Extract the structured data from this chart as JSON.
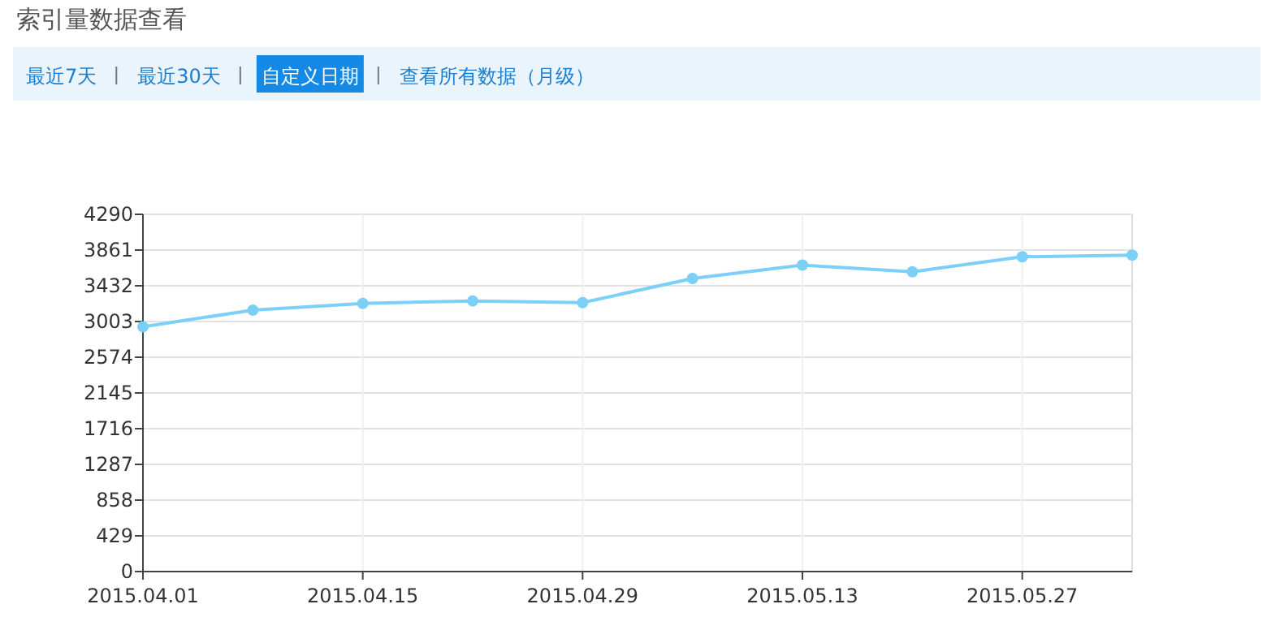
{
  "chart_data": {
    "type": "line",
    "title": "索引量数据查看",
    "annotations": [
      "最近7天",
      "最近30天",
      "自定义日期",
      "查看所有数据（月级）"
    ],
    "x": [
      "2015-04-01",
      "2015-04-08",
      "2015-04-15",
      "2015-04-22",
      "2015-04-29",
      "2015-05-06",
      "2015-05-13",
      "2015-05-20",
      "2015-05-27",
      "2015-06-03"
    ],
    "series": [
      {
        "color": "#7ccff6",
        "values": [
          2940,
          3140,
          3220,
          3250,
          3230,
          3520,
          3680,
          3600,
          3780,
          3800
        ]
      }
    ],
    "xlim": [
      "2015-04-01",
      "2015-06-03"
    ],
    "xticks": [
      {
        "value": "2015-04-01",
        "label": "2015.04.01"
      },
      {
        "value": "2015-04-15",
        "label": "2015.04.15"
      },
      {
        "value": "2015-04-29",
        "label": "2015.04.29"
      },
      {
        "value": "2015-05-13",
        "label": "2015.05.13"
      },
      {
        "value": "2015-05-27",
        "label": "2015.05.27"
      }
    ],
    "ylim": [
      0,
      4290
    ],
    "yticks": [
      0,
      429,
      858,
      1287,
      1716,
      2145,
      2574,
      3003,
      3432,
      3861,
      4290
    ],
    "grid": true,
    "marker": "circle",
    "line_style": "solid"
  }
}
